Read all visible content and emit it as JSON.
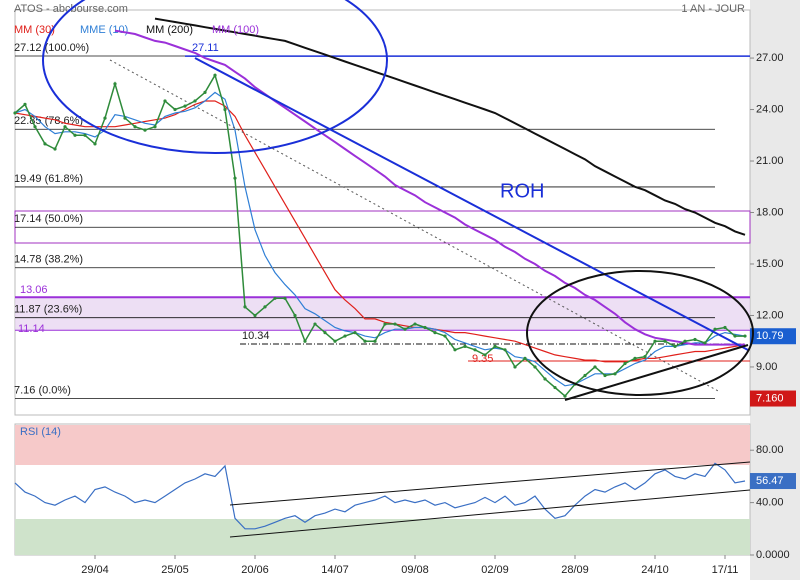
{
  "chart_data": [
    {
      "type": "line",
      "title": "ATOS - abcbourse.com",
      "subtitle": "1 AN - JOUR",
      "categories": [
        null,
        null,
        null,
        null,
        null,
        null,
        null,
        null,
        "29/04",
        null,
        null,
        null,
        null,
        null,
        null,
        null,
        "25/05",
        null,
        null,
        null,
        null,
        null,
        null,
        null,
        "20/06",
        null,
        null,
        null,
        null,
        null,
        null,
        null,
        "14/07",
        null,
        null,
        null,
        null,
        null,
        null,
        null,
        "09/08",
        null,
        null,
        null,
        null,
        null,
        null,
        null,
        "02/09",
        null,
        null,
        null,
        null,
        null,
        null,
        null,
        "28/09",
        null,
        null,
        null,
        null,
        null,
        null,
        null,
        "24/10",
        null,
        null,
        null,
        null,
        null,
        null,
        "17/11",
        null,
        null
      ],
      "values": [
        23.8,
        24.3,
        23.0,
        22.0,
        21.7,
        23.0,
        22.5,
        22.5,
        22.0,
        23.5,
        25.5,
        23.5,
        23.0,
        22.8,
        23.0,
        24.5,
        24.0,
        24.2,
        24.5,
        25.0,
        26.0,
        24.0,
        20.0,
        12.5,
        12.0,
        12.5,
        13.0,
        13.0,
        12.0,
        10.5,
        11.5,
        11.0,
        10.5,
        10.8,
        11.0,
        10.5,
        10.5,
        11.5,
        11.5,
        11.2,
        11.5,
        11.3,
        11.0,
        10.8,
        10.0,
        10.2,
        10.0,
        9.7,
        10.2,
        10.0,
        9.0,
        9.5,
        9.0,
        8.3,
        7.8,
        7.3,
        8.0,
        8.5,
        9.0,
        8.5,
        8.6,
        9.2,
        9.5,
        9.6,
        10.5,
        10.5,
        10.2,
        10.5,
        10.6,
        10.4,
        11.2,
        11.3,
        10.8,
        10.8
      ],
      "color": "#2e8b3a",
      "series": [
        {
          "name": "MM (30)",
          "color": "#e0201b",
          "values": [
            23.8,
            23.7,
            23.6,
            23.5,
            23.4,
            23.2,
            23.1,
            23.0,
            23.0,
            23.0,
            23.0,
            23.1,
            23.2,
            23.3,
            23.4,
            23.5,
            23.7,
            24.0,
            24.3,
            24.5,
            24.5,
            24.2,
            23.6,
            22.5,
            21.5,
            20.5,
            19.5,
            18.5,
            17.5,
            16.5,
            15.5,
            14.5,
            13.5,
            12.9,
            12.4,
            11.8,
            11.8,
            11.6,
            11.5,
            11.4,
            11.3,
            11.3,
            11.2,
            11.1,
            11.0,
            11.0,
            10.9,
            10.8,
            10.7,
            10.6,
            10.5,
            10.3,
            10.1,
            9.9,
            9.7,
            9.6,
            9.5,
            9.4,
            9.4,
            9.3,
            9.3,
            9.3,
            9.4,
            9.5,
            9.5,
            9.6,
            9.7,
            9.8,
            9.9,
            9.9,
            10.0,
            10.1,
            10.2,
            10.3
          ]
        },
        {
          "name": "MME (10)",
          "color": "#2f7fd6",
          "values": [
            23.8,
            24.0,
            23.6,
            23.0,
            22.6,
            22.7,
            22.7,
            22.6,
            22.4,
            22.8,
            23.7,
            23.6,
            23.4,
            23.2,
            23.1,
            23.6,
            23.8,
            23.9,
            24.1,
            24.5,
            25.0,
            24.6,
            22.8,
            19.5,
            17.0,
            15.5,
            14.5,
            13.8,
            13.2,
            12.4,
            12.1,
            11.7,
            11.3,
            11.1,
            11.0,
            10.8,
            10.7,
            11.0,
            11.2,
            11.2,
            11.3,
            11.3,
            11.2,
            11.0,
            10.6,
            10.4,
            10.2,
            10.0,
            10.1,
            10.0,
            9.6,
            9.5,
            9.3,
            8.8,
            8.3,
            7.9,
            8.0,
            8.3,
            8.6,
            8.6,
            8.6,
            8.9,
            9.2,
            9.4,
            9.9,
            10.2,
            10.2,
            10.3,
            10.4,
            10.4,
            10.8,
            11.0,
            10.9,
            10.8
          ]
        },
        {
          "name": "MM (200)",
          "color": "#111111",
          "values": [
            null,
            null,
            null,
            null,
            null,
            null,
            null,
            null,
            null,
            null,
            null,
            null,
            null,
            null,
            29.3,
            29.2,
            29.1,
            29.0,
            28.9,
            28.8,
            28.7,
            28.6,
            28.5,
            28.4,
            28.3,
            28.2,
            28.1,
            28.0,
            27.8,
            27.6,
            27.4,
            27.2,
            27.0,
            26.8,
            26.6,
            26.4,
            26.2,
            26.0,
            25.8,
            25.6,
            25.4,
            25.2,
            25.0,
            24.8,
            24.6,
            24.4,
            24.2,
            24.0,
            23.8,
            23.5,
            23.2,
            22.9,
            22.6,
            22.3,
            22.0,
            21.7,
            21.4,
            21.1,
            20.7,
            20.4,
            20.1,
            19.8,
            19.5,
            19.3,
            19.0,
            18.7,
            18.5,
            18.2,
            18.0,
            17.7,
            17.4,
            17.2,
            16.9,
            16.7
          ]
        },
        {
          "name": "MM (100)",
          "color": "#9b30d9",
          "values": [
            null,
            null,
            null,
            null,
            null,
            null,
            null,
            null,
            null,
            null,
            28.6,
            28.5,
            28.4,
            28.2,
            28.0,
            27.9,
            27.7,
            27.5,
            27.3,
            27.0,
            26.8,
            26.6,
            26.2,
            25.8,
            25.3,
            24.9,
            24.5,
            24.1,
            23.7,
            23.3,
            22.9,
            22.5,
            22.1,
            21.7,
            21.3,
            20.9,
            20.5,
            20.1,
            19.6,
            19.3,
            19.0,
            18.6,
            18.3,
            18.0,
            17.7,
            17.3,
            17.0,
            16.7,
            16.4,
            16.0,
            15.7,
            15.3,
            15.0,
            14.6,
            14.3,
            13.9,
            13.6,
            13.2,
            12.9,
            12.5,
            12.1,
            11.6,
            11.2,
            10.9,
            10.7,
            10.6,
            10.5,
            10.4,
            10.3,
            10.3,
            10.3,
            10.3,
            10.3,
            10.3
          ]
        }
      ],
      "ylim": [
        6.2,
        29.8
      ],
      "yticks": [
        {
          "value": 27,
          "label": "27.00"
        },
        {
          "value": 24,
          "label": "24.00"
        },
        {
          "value": 21,
          "label": "21.00"
        },
        {
          "value": 18,
          "label": "18.00"
        },
        {
          "value": 15,
          "label": "15.00"
        },
        {
          "value": 12,
          "label": "12.00"
        },
        {
          "value": 9,
          "label": "9.00"
        }
      ],
      "levels": [
        {
          "value": 27.12,
          "label": "27.12 (100.0%)"
        },
        {
          "value": 22.85,
          "label": "22.85 (78.6%)"
        },
        {
          "value": 19.49,
          "label": "19.49 (61.8%)"
        },
        {
          "value": 17.14,
          "label": "17.14 (50.0%)"
        },
        {
          "value": 14.78,
          "label": "14.78 (38.2%)"
        },
        {
          "value": 11.87,
          "label": "11.87 (23.6%)"
        },
        {
          "value": 7.16,
          "label": "7.16 (0.0%)"
        }
      ],
      "resistance": 27.11,
      "zone": [
        13.06,
        11.14
      ],
      "supports": [
        10.34,
        9.35
      ],
      "annotation": "ROH",
      "last_value": 10.79,
      "low_value": {
        "value": 7.16,
        "label": "7.160"
      }
    },
    {
      "type": "line",
      "title": "RSI (14)",
      "values": [
        55,
        48,
        45,
        40,
        38,
        42,
        45,
        40,
        50,
        52,
        48,
        45,
        40,
        42,
        40,
        45,
        50,
        55,
        58,
        62,
        60,
        68,
        28,
        20,
        20,
        22,
        25,
        28,
        30,
        25,
        30,
        32,
        35,
        33,
        38,
        40,
        42,
        45,
        40,
        42,
        40,
        42,
        38,
        40,
        36,
        38,
        40,
        44,
        40,
        45,
        38,
        40,
        45,
        35,
        28,
        30,
        38,
        45,
        50,
        48,
        52,
        55,
        50,
        55,
        62,
        65,
        60,
        58,
        62,
        60,
        70,
        65,
        55,
        56.47
      ],
      "color": "#3a6fc4",
      "ylim": [
        0,
        100
      ],
      "yticks": [
        {
          "value": 80,
          "label": "80.00"
        },
        {
          "value": 40,
          "label": "40.00"
        },
        {
          "value": 0,
          "label": "0.0000"
        }
      ],
      "last_value": 56.47
    }
  ]
}
